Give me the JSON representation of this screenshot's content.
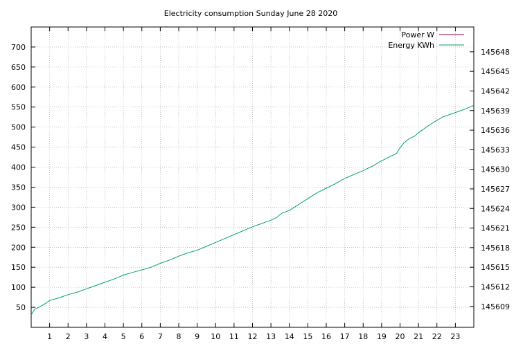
{
  "chart_data": {
    "type": "line",
    "title": "Electricity consumption Sunday June 28 2020",
    "xlabel": "",
    "ylabel": "",
    "y2label": "",
    "xlim": [
      0,
      24
    ],
    "ylim": [
      0,
      750
    ],
    "y2lim": [
      145605.8,
      145651.8
    ],
    "grid": true,
    "legend_position": "top-right",
    "x_ticks": [
      1,
      2,
      3,
      4,
      5,
      6,
      7,
      8,
      9,
      10,
      11,
      12,
      13,
      14,
      15,
      16,
      17,
      18,
      19,
      20,
      21,
      22,
      23
    ],
    "x_tick_labels": [
      "1",
      "2",
      "3",
      "4",
      "5",
      "6",
      "7",
      "8",
      "9",
      "10",
      "11",
      "12",
      "13",
      "14",
      "15",
      "16",
      "17",
      "18",
      "19",
      "20",
      "21",
      "22",
      "23"
    ],
    "y_ticks": [
      50,
      100,
      150,
      200,
      250,
      300,
      350,
      400,
      450,
      500,
      550,
      600,
      650,
      700
    ],
    "y_tick_labels": [
      "50",
      "100",
      "150",
      "200",
      "250",
      "300",
      "350",
      "400",
      "450",
      "500",
      "550",
      "600",
      "650",
      "700"
    ],
    "y2_ticks": [
      145609,
      145612,
      145615,
      145618,
      145621,
      145624,
      145627,
      145630,
      145633,
      145636,
      145639,
      145642,
      145645,
      145648
    ],
    "y2_tick_labels": [
      "145609",
      "145612",
      "145615",
      "145618",
      "145621",
      "145624",
      "145627",
      "145630",
      "145633",
      "145636",
      "145639",
      "145642",
      "145645",
      "145648"
    ],
    "series": [
      {
        "name": "Power W",
        "color": "#94004f",
        "x": [],
        "y": []
      },
      {
        "name": "Energy KWh",
        "color": "#009e73",
        "axis": "right",
        "x": [
          0,
          0.2,
          0.5,
          0.8,
          1.0,
          1.5,
          2,
          2.5,
          3,
          3.5,
          4,
          4.5,
          5,
          5.5,
          6,
          6.5,
          7,
          7.5,
          8,
          8.5,
          9,
          9.5,
          10,
          10.5,
          11,
          11.5,
          12,
          12.5,
          13,
          13.3,
          13.6,
          14,
          14.5,
          15,
          15.5,
          16,
          16.5,
          17,
          17.5,
          18,
          18.5,
          19,
          19.5,
          19.8,
          20,
          20.2,
          20.5,
          20.8,
          21,
          21.3,
          21.6,
          22,
          22.3,
          22.6,
          23,
          23.5,
          24
        ],
        "y": [
          145607.7,
          145608.6,
          145609.0,
          145609.5,
          145609.9,
          145610.3,
          145610.8,
          145611.2,
          145611.7,
          145612.2,
          145612.7,
          145613.2,
          145613.8,
          145614.2,
          145614.6,
          145615.0,
          145615.6,
          145616.1,
          145616.7,
          145617.2,
          145617.6,
          145618.2,
          145618.8,
          145619.4,
          145620.0,
          145620.6,
          145621.2,
          145621.7,
          145622.2,
          145622.6,
          145623.3,
          145623.7,
          145624.6,
          145625.5,
          145626.4,
          145627.1,
          145627.8,
          145628.6,
          145629.2,
          145629.8,
          145630.5,
          145631.3,
          145632.0,
          145632.4,
          145633.3,
          145634.0,
          145634.7,
          145635.1,
          145635.6,
          145636.2,
          145636.8,
          145637.5,
          145638.0,
          145638.3,
          145638.7,
          145639.2,
          145639.8
        ]
      }
    ]
  }
}
